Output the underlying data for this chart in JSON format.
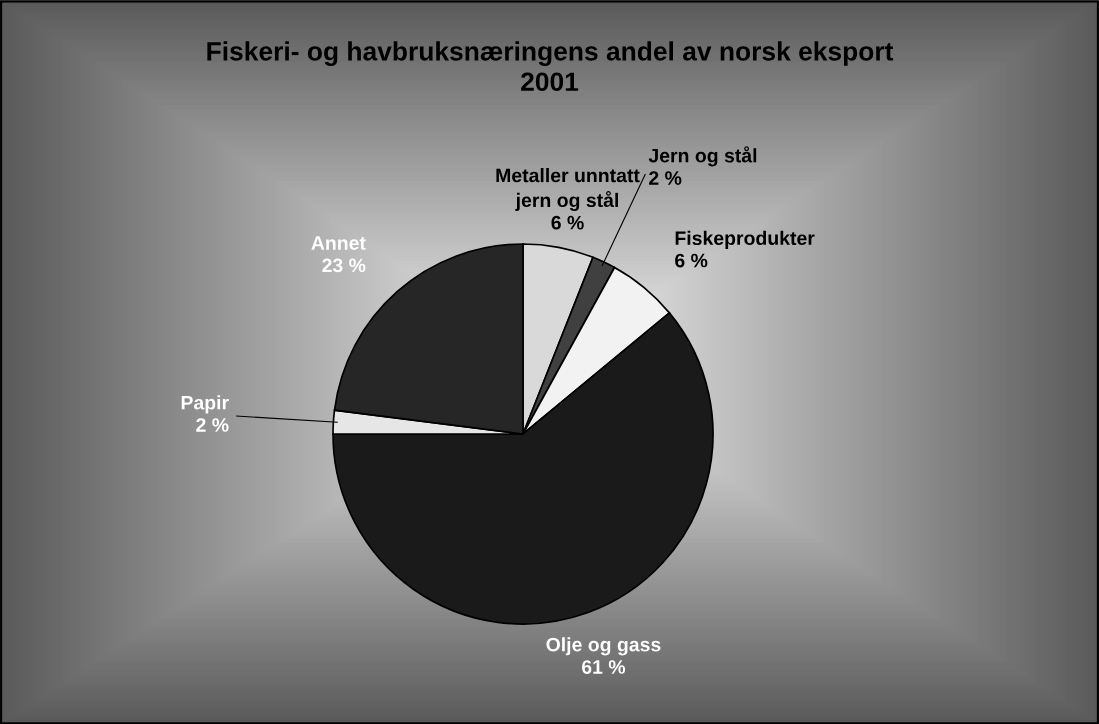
{
  "chart_data": {
    "type": "pie",
    "title": "Fiskeri- og havbruksnæringens andel av norsk eksport\n2001",
    "categories": [
      "Metaller unntatt\njern og stål",
      "Jern og stål",
      "Fiskeprodukter",
      "Olje og gass",
      "Papir",
      "Annet"
    ],
    "values": [
      6,
      2,
      6,
      61,
      2,
      23
    ],
    "colors": [
      "#d9d9d9",
      "#404040",
      "#f2f2f2",
      "#1a1a1a",
      "#e6e6e6",
      "#262626"
    ],
    "value_labels": [
      "6 %",
      "2 %",
      "6 %",
      "61 %",
      "2 %",
      "23 %"
    ]
  }
}
